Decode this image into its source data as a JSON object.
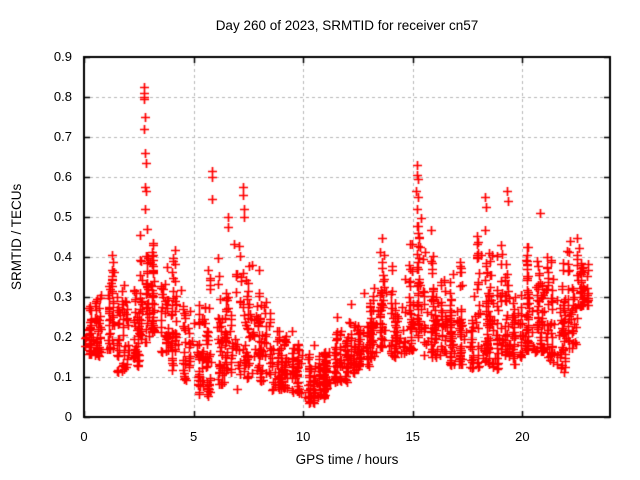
{
  "chart_data": {
    "type": "scatter",
    "title": "Day 260 of 2023, SRMTID for receiver cn57",
    "xlabel": "GPS time / hours",
    "ylabel": "SRMTID / TECUs",
    "xlim": [
      0,
      24
    ],
    "ylim": [
      0,
      0.9
    ],
    "xticks": [
      0,
      5,
      10,
      15,
      20
    ],
    "xtick_labels": [
      "0",
      "5",
      "10",
      "15",
      "20"
    ],
    "yticks": [
      0,
      0.1,
      0.2,
      0.3,
      0.4,
      0.5,
      0.6,
      0.7,
      0.8,
      0.9
    ],
    "ytick_labels": [
      "0",
      "0.1",
      "0.2",
      "0.3",
      "0.4",
      "0.5",
      "0.6",
      "0.7",
      "0.8",
      "0.9"
    ],
    "grid": true,
    "legend": "none",
    "marker": "plus",
    "marker_color": "#ff0000",
    "grid_color": "#b8b8b8",
    "axis_color": "#000000",
    "background": "#ffffff",
    "seed": 11,
    "series_name": "SRMTID",
    "density_bands": [
      [
        0.0,
        0.5,
        0.15,
        0.33,
        40
      ],
      [
        0.5,
        1.0,
        0.14,
        0.4,
        45
      ],
      [
        1.0,
        1.5,
        0.16,
        0.44,
        45
      ],
      [
        1.5,
        2.0,
        0.1,
        0.35,
        50
      ],
      [
        2.0,
        2.5,
        0.12,
        0.36,
        45
      ],
      [
        2.5,
        3.0,
        0.17,
        0.5,
        50
      ],
      [
        3.0,
        3.5,
        0.2,
        0.47,
        45
      ],
      [
        3.5,
        4.0,
        0.15,
        0.42,
        40
      ],
      [
        4.0,
        4.5,
        0.1,
        0.44,
        40
      ],
      [
        4.5,
        5.0,
        0.08,
        0.32,
        35
      ],
      [
        5.0,
        5.5,
        0.05,
        0.3,
        40
      ],
      [
        5.5,
        6.0,
        0.04,
        0.45,
        40
      ],
      [
        6.0,
        6.5,
        0.05,
        0.42,
        45
      ],
      [
        6.5,
        7.0,
        0.1,
        0.46,
        40
      ],
      [
        7.0,
        7.5,
        0.08,
        0.5,
        45
      ],
      [
        7.5,
        8.0,
        0.1,
        0.44,
        40
      ],
      [
        8.0,
        8.5,
        0.08,
        0.32,
        40
      ],
      [
        8.5,
        9.0,
        0.06,
        0.28,
        40
      ],
      [
        9.0,
        9.5,
        0.06,
        0.26,
        45
      ],
      [
        9.5,
        10.0,
        0.05,
        0.2,
        45
      ],
      [
        10.0,
        10.5,
        0.03,
        0.18,
        50
      ],
      [
        10.5,
        11.0,
        0.04,
        0.2,
        50
      ],
      [
        11.0,
        11.5,
        0.06,
        0.22,
        50
      ],
      [
        11.5,
        12.0,
        0.08,
        0.26,
        50
      ],
      [
        12.0,
        12.5,
        0.1,
        0.3,
        50
      ],
      [
        12.5,
        13.0,
        0.12,
        0.33,
        50
      ],
      [
        13.0,
        13.5,
        0.14,
        0.36,
        45
      ],
      [
        13.5,
        14.0,
        0.16,
        0.5,
        45
      ],
      [
        14.0,
        14.5,
        0.14,
        0.45,
        45
      ],
      [
        14.5,
        15.0,
        0.15,
        0.5,
        45
      ],
      [
        15.0,
        15.5,
        0.18,
        0.55,
        45
      ],
      [
        15.5,
        16.0,
        0.14,
        0.48,
        45
      ],
      [
        16.0,
        16.5,
        0.14,
        0.45,
        45
      ],
      [
        16.5,
        17.0,
        0.12,
        0.4,
        45
      ],
      [
        17.0,
        17.5,
        0.12,
        0.42,
        45
      ],
      [
        17.5,
        18.0,
        0.1,
        0.46,
        45
      ],
      [
        18.0,
        18.5,
        0.12,
        0.52,
        45
      ],
      [
        18.5,
        19.0,
        0.1,
        0.46,
        45
      ],
      [
        19.0,
        19.5,
        0.14,
        0.55,
        45
      ],
      [
        19.5,
        20.0,
        0.12,
        0.46,
        45
      ],
      [
        20.0,
        20.5,
        0.15,
        0.48,
        50
      ],
      [
        20.5,
        21.0,
        0.15,
        0.47,
        50
      ],
      [
        21.0,
        21.5,
        0.12,
        0.45,
        45
      ],
      [
        21.5,
        22.0,
        0.1,
        0.43,
        45
      ],
      [
        22.0,
        22.5,
        0.15,
        0.46,
        45
      ],
      [
        22.5,
        23.0,
        0.27,
        0.47,
        50
      ]
    ],
    "outlier_points": [
      [
        2.73,
        0.825
      ],
      [
        2.75,
        0.81
      ],
      [
        2.76,
        0.8
      ],
      [
        2.74,
        0.795
      ],
      [
        2.72,
        0.8
      ],
      [
        2.78,
        0.75
      ],
      [
        2.76,
        0.72
      ],
      [
        2.8,
        0.66
      ],
      [
        2.82,
        0.635
      ],
      [
        2.79,
        0.575
      ],
      [
        2.84,
        0.565
      ],
      [
        2.77,
        0.52
      ],
      [
        2.86,
        0.47
      ],
      [
        5.82,
        0.615
      ],
      [
        5.84,
        0.6
      ],
      [
        5.86,
        0.545
      ],
      [
        6.55,
        0.5
      ],
      [
        6.58,
        0.475
      ],
      [
        7.27,
        0.575
      ],
      [
        7.25,
        0.555
      ],
      [
        7.3,
        0.52
      ],
      [
        7.32,
        0.5
      ],
      [
        7.0,
        0.07
      ],
      [
        15.18,
        0.63
      ],
      [
        15.2,
        0.605
      ],
      [
        15.22,
        0.595
      ],
      [
        15.16,
        0.565
      ],
      [
        15.24,
        0.55
      ],
      [
        15.19,
        0.52
      ],
      [
        18.3,
        0.55
      ],
      [
        18.34,
        0.525
      ],
      [
        19.3,
        0.565
      ],
      [
        19.33,
        0.54
      ],
      [
        20.8,
        0.51
      ]
    ]
  }
}
